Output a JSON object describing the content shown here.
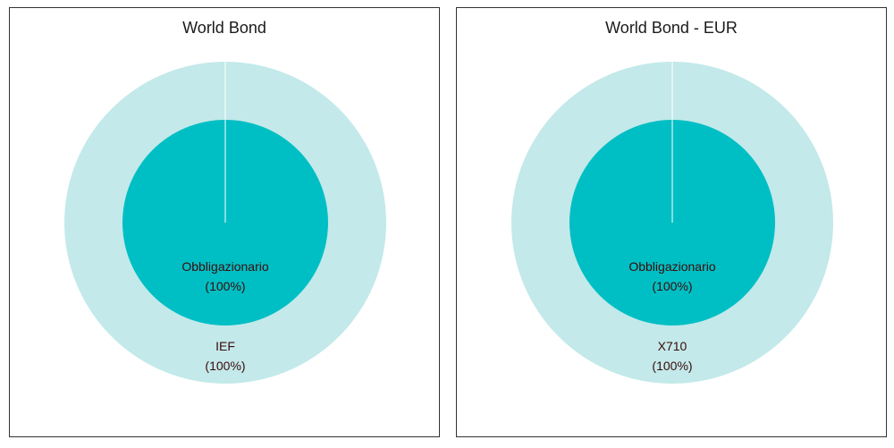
{
  "colors": {
    "outer_ring": "#c3e9ea",
    "inner_disc": "#00bfc4",
    "divider": "#ffffff"
  },
  "chart_data": [
    {
      "type": "pie",
      "title": "World Bond",
      "inner": {
        "categories": [
          "Obbligazionario"
        ],
        "values": [
          100
        ],
        "labels": [
          "Obbligazionario",
          "(100%)"
        ]
      },
      "outer": {
        "categories": [
          "IEF"
        ],
        "values": [
          100
        ],
        "labels": [
          "IEF",
          "(100%)"
        ]
      }
    },
    {
      "type": "pie",
      "title": "World Bond - EUR",
      "inner": {
        "categories": [
          "Obbligazionario"
        ],
        "values": [
          100
        ],
        "labels": [
          "Obbligazionario",
          "(100%)"
        ]
      },
      "outer": {
        "categories": [
          "X710"
        ],
        "values": [
          100
        ],
        "labels": [
          "X710",
          "(100%)"
        ]
      }
    }
  ]
}
